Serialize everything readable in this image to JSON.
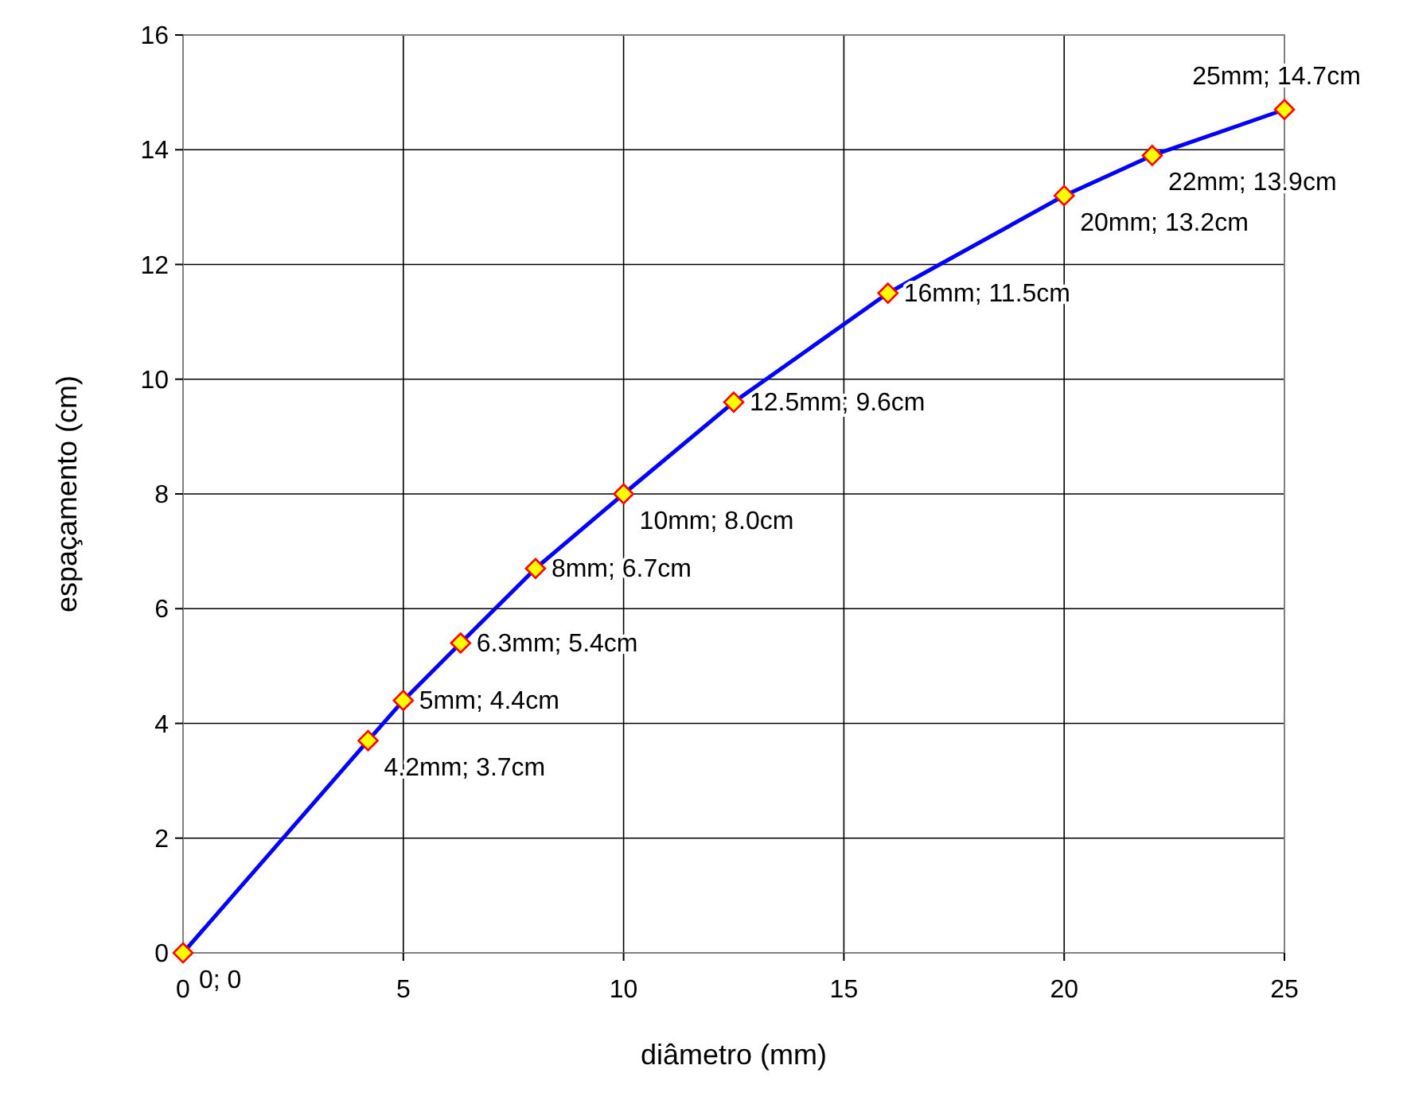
{
  "chart_data": {
    "type": "line",
    "xlabel": "diâmetro (mm)",
    "ylabel": "espaçamento (cm)",
    "x": [
      0,
      4.2,
      5,
      6.3,
      8,
      10,
      12.5,
      16,
      20,
      22,
      25
    ],
    "series": [
      {
        "color": "#0000ff",
        "values": [
          0,
          3.7,
          4.4,
          5.4,
          6.7,
          8.0,
          9.6,
          11.5,
          13.2,
          13.9,
          14.7
        ]
      }
    ],
    "xlim": [
      0,
      25
    ],
    "xticks": [
      0,
      5,
      10,
      15,
      20,
      25
    ],
    "ylim": [
      0,
      16
    ],
    "yticks": [
      0,
      2,
      4,
      6,
      8,
      10,
      12,
      14,
      16
    ],
    "grid": true,
    "marker": "diamond",
    "annotations": [
      {
        "text": "0; 0",
        "x": 0,
        "y": 0
      },
      {
        "text": "4.2mm; 3.7cm",
        "x": 4.2,
        "y": 3.7
      },
      {
        "text": "5mm; 4.4cm",
        "x": 5,
        "y": 4.4
      },
      {
        "text": "6.3mm; 5.4cm",
        "x": 6.3,
        "y": 5.4
      },
      {
        "text": "8mm; 6.7cm",
        "x": 8,
        "y": 6.7
      },
      {
        "text": "10mm; 8.0cm",
        "x": 10,
        "y": 8.0
      },
      {
        "text": "12.5mm; 9.6cm",
        "x": 12.5,
        "y": 9.6
      },
      {
        "text": "16mm; 11.5cm",
        "x": 16,
        "y": 11.5
      },
      {
        "text": "20mm; 13.2cm",
        "x": 20,
        "y": 13.2
      },
      {
        "text": "22mm; 13.9cm",
        "x": 22,
        "y": 13.9
      },
      {
        "text": "25mm; 14.7cm",
        "x": 25,
        "y": 14.7
      }
    ]
  }
}
